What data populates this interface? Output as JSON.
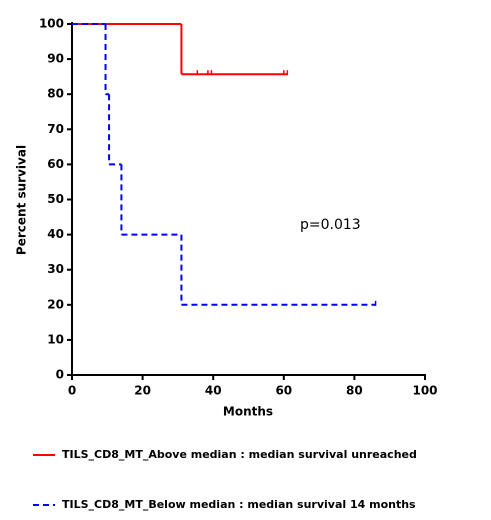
{
  "chart_data": {
    "type": "survival",
    "x_label": "Months",
    "y_label": "Percent survival",
    "annotation": "p=0.013",
    "xlim": [
      0,
      100
    ],
    "ylim": [
      0,
      100
    ],
    "xticks": [
      0,
      20,
      40,
      60,
      80,
      100
    ],
    "yticks": [
      0,
      10,
      20,
      30,
      40,
      50,
      60,
      70,
      80,
      90,
      100
    ],
    "series": [
      {
        "name": "TILS_CD8_MT_Above median : median survival unreached",
        "color": "#ff0000",
        "dashed": false,
        "x": [
          0,
          31,
          61
        ],
        "values": [
          100,
          85.7,
          85.7
        ],
        "censored_x": [
          35.5,
          38.5,
          39.5,
          60,
          61
        ]
      },
      {
        "name": "TILS_CD8_MT_Below median : median survival 14 months",
        "color": "#0000ff",
        "dashed": true,
        "x": [
          0,
          9.5,
          10.5,
          14,
          31,
          86
        ],
        "values": [
          100,
          80,
          60,
          40,
          20,
          20
        ],
        "censored_x": [
          86
        ]
      }
    ]
  }
}
